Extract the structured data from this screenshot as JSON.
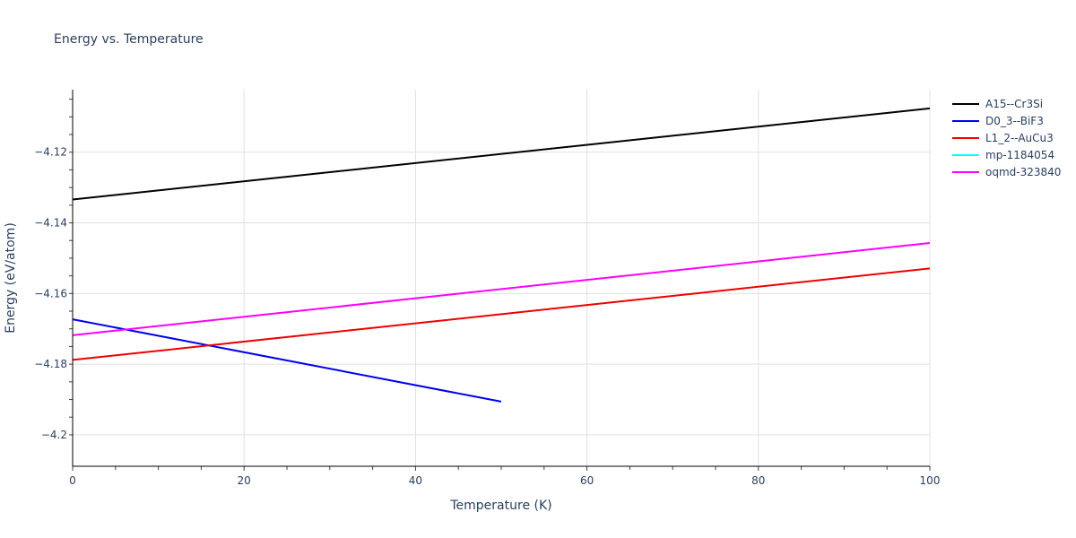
{
  "chart_data": {
    "type": "line",
    "title": "Energy vs. Temperature",
    "xlabel": "Temperature (K)",
    "ylabel": "Energy (eV/atom)",
    "xlim": [
      0,
      100
    ],
    "ylim": [
      -4.2089,
      -4.1023
    ],
    "xticks": [
      0,
      20,
      40,
      60,
      80,
      100
    ],
    "xtick_labels": [
      "0",
      "20",
      "40",
      "60",
      "80",
      "100"
    ],
    "yticks": [
      -4.12,
      -4.14,
      -4.16,
      -4.18,
      -4.2
    ],
    "ytick_labels": [
      "−4.12",
      "−4.14",
      "−4.16",
      "−4.18",
      "−4.2"
    ],
    "grid": true,
    "legend_position": "right",
    "series": [
      {
        "name": "A15--Cr3Si",
        "color": "#000000",
        "x": [
          0,
          100
        ],
        "values": [
          -4.1334,
          -4.1076
        ]
      },
      {
        "name": "D0_3--BiF3",
        "color": "#0000ee",
        "x": [
          0,
          50
        ],
        "values": [
          -4.1673,
          -4.1906
        ]
      },
      {
        "name": "L1_2--AuCu3",
        "color": "#ee0000",
        "x": [
          0,
          100
        ],
        "values": [
          -4.1788,
          -4.1529
        ]
      },
      {
        "name": "mp-1184054",
        "color": "#00ffff",
        "x": [],
        "values": []
      },
      {
        "name": "oqmd-323840",
        "color": "#ff00ff",
        "x": [
          0,
          100
        ],
        "values": [
          -4.1718,
          -4.1457
        ]
      }
    ]
  }
}
